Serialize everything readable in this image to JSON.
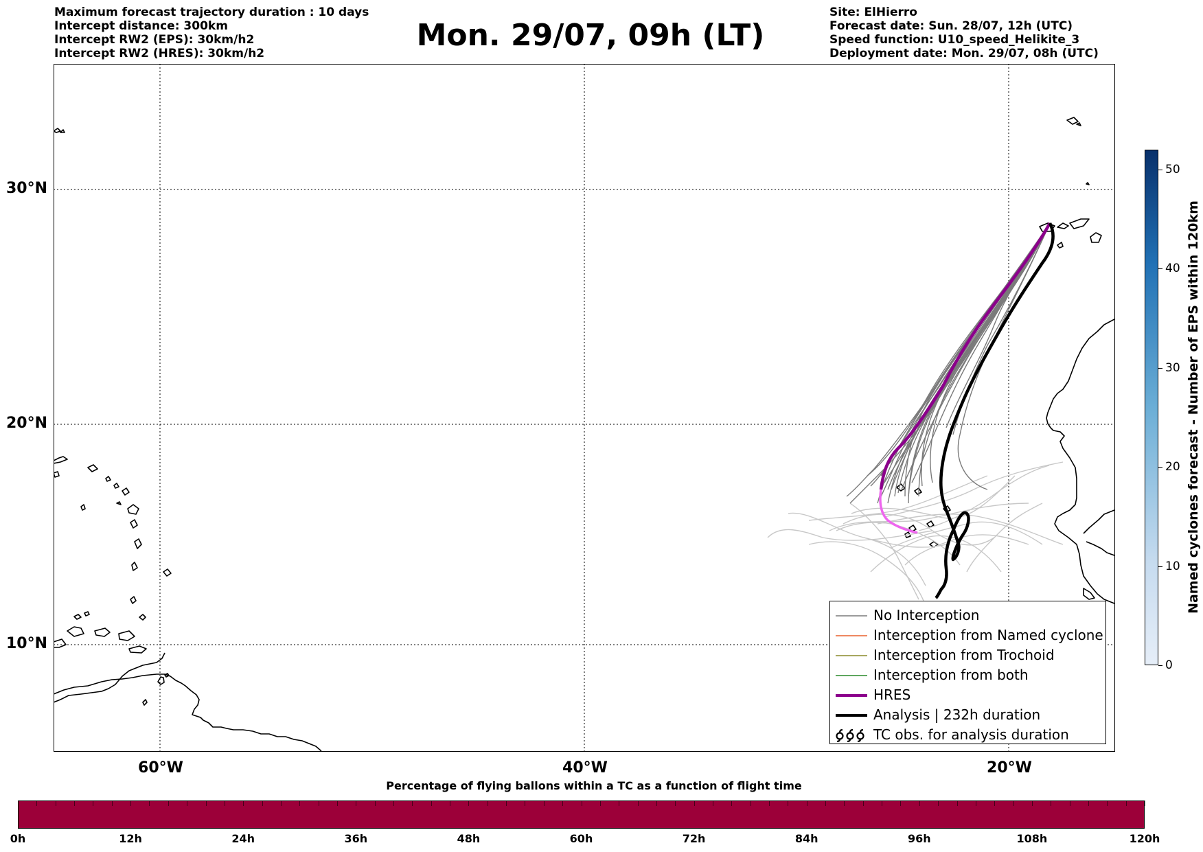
{
  "header": {
    "left_lines": [
      "Maximum forecast trajectory duration : 10 days",
      "Intercept distance: 300km",
      "Intercept RW2 (EPS):  30km/h2",
      "Intercept RW2 (HRES): 30km/h2"
    ],
    "title": "Mon. 29/07, 09h (LT)",
    "right_lines": [
      "Site: ElHierro",
      "Forecast date: Sun. 28/07, 12h (UTC)",
      "Speed function: U10_speed_Helikite_3",
      "Deployment date: Mon. 29/07, 08h (UTC)"
    ]
  },
  "map": {
    "lat_labels": [
      "30°N",
      "20°N",
      "10°N"
    ],
    "lon_labels": [
      "60°W",
      "40°W",
      "20°W"
    ],
    "gridlines": "dotted",
    "lat_range": [
      5.5,
      34.8
    ],
    "lon_range": [
      -65,
      -15
    ]
  },
  "legend": {
    "items": [
      {
        "label": "No Interception",
        "color": "#7a7a7a",
        "style": "thin"
      },
      {
        "label": "Interception from Named cyclone",
        "color": "#e8602c",
        "style": "thin"
      },
      {
        "label": "Interception from Trochoid",
        "color": "#8a8a2a",
        "style": "thin"
      },
      {
        "label": "Interception from both",
        "color": "#2a8a2a",
        "style": "thin"
      },
      {
        "label": "HRES",
        "color": "#8b008b",
        "style": "thick"
      },
      {
        "label": "Analysis | 232h duration",
        "color": "#000000",
        "style": "thick"
      },
      {
        "label": "TC obs. for analysis duration",
        "color": "#000000",
        "style": "cyclone-symbols"
      }
    ]
  },
  "colorbar": {
    "title": "Named cyclones forecast - Number of EPS within 120km",
    "ticks": [
      "0",
      "10",
      "20",
      "30",
      "40",
      "50"
    ],
    "max": 52,
    "color_low": "#e6eef8",
    "color_high": "#08306b"
  },
  "flight_bar": {
    "title": "Percentage of flying ballons within a TC as a function of flight time",
    "ticks": [
      "0h",
      "12h",
      "24h",
      "36h",
      "48h",
      "60h",
      "72h",
      "84h",
      "96h",
      "108h",
      "120h"
    ],
    "color": "#9c0039"
  }
}
